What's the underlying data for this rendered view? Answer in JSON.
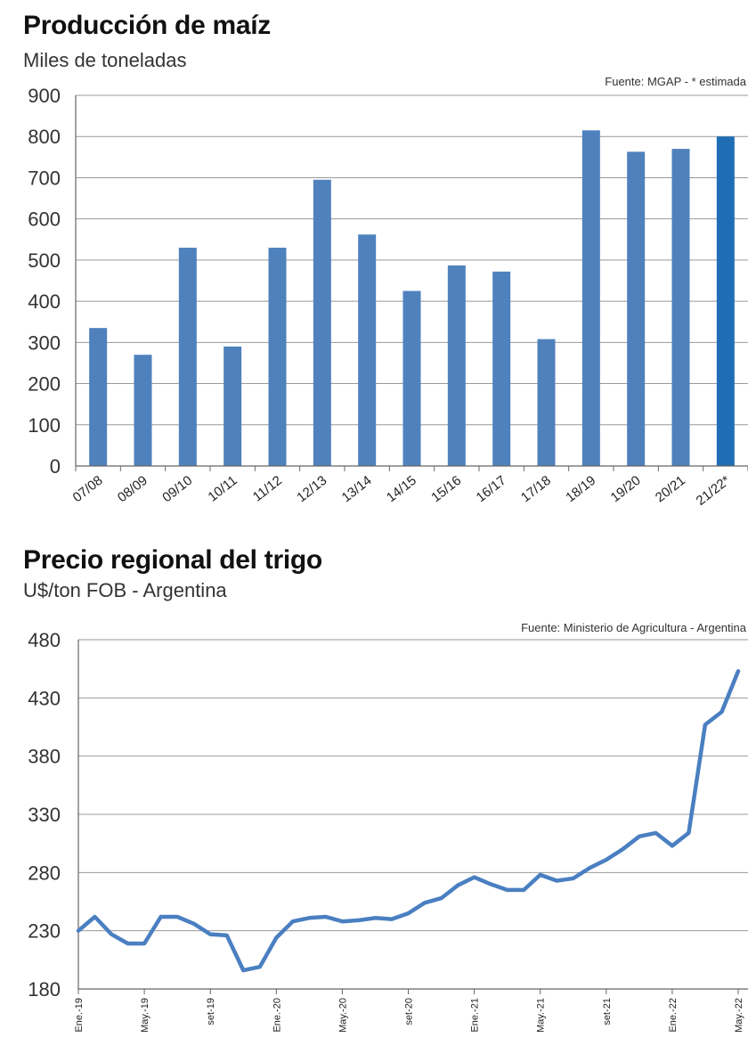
{
  "chart_data": [
    {
      "type": "bar",
      "title": "Producción de maíz",
      "subtitle": "Miles de toneladas",
      "source": "Fuente: MGAP - * estimada",
      "categories": [
        "07/08",
        "08/09",
        "09/10",
        "10/11",
        "11/12",
        "12/13",
        "13/14",
        "14/15",
        "15/16",
        "16/17",
        "17/18",
        "18/19",
        "19/20",
        "20/21",
        "21/22*"
      ],
      "values": [
        335,
        270,
        530,
        290,
        530,
        695,
        562,
        425,
        487,
        472,
        308,
        815,
        763,
        770,
        800
      ],
      "ylim": [
        0,
        900
      ],
      "yticks": [
        0,
        100,
        200,
        300,
        400,
        500,
        600,
        700,
        800,
        900
      ],
      "colors": {
        "bar": "#4f81bd",
        "estimated_bar": "#1f6eb5",
        "grid": "#999999"
      }
    },
    {
      "type": "line",
      "title": "Precio regional del trigo",
      "subtitle": "U$/ton FOB - Argentina",
      "source": "Fuente:  Ministerio de Agricultura - Argentina",
      "x_tick_labels": [
        "Ene.-19",
        "May.-19",
        "set-19",
        "Ene.-20",
        "May.-20",
        "set-20",
        "Ene.-21",
        "May.-21",
        "set-21",
        "Ene.-22",
        "May.-22"
      ],
      "x_tick_months": [
        0,
        4,
        8,
        12,
        16,
        20,
        24,
        28,
        32,
        36,
        40
      ],
      "values": [
        230,
        242,
        227,
        219,
        219,
        242,
        242,
        236,
        227,
        226,
        196,
        199,
        224,
        238,
        241,
        242,
        238,
        239,
        241,
        240,
        245,
        254,
        258,
        269,
        276,
        270,
        265,
        265,
        278,
        273,
        275,
        284,
        291,
        300,
        311,
        314,
        303,
        314,
        407,
        418,
        453
      ],
      "ylim": [
        180,
        480
      ],
      "yticks": [
        180,
        230,
        280,
        330,
        380,
        430,
        480
      ],
      "colors": {
        "line": "#4a7fc1",
        "grid": "#999999"
      }
    }
  ]
}
